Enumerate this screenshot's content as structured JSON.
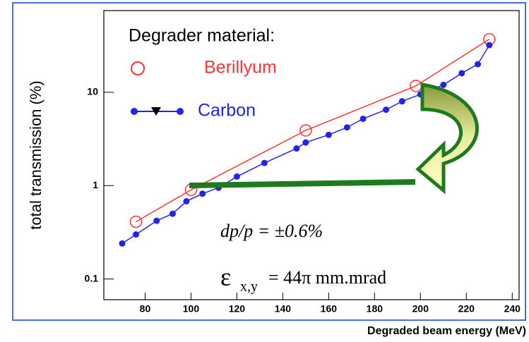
{
  "chart_data": {
    "type": "line",
    "y_label": "total transmission (%)",
    "x_label": "Degraded beam energy (MeV)",
    "legend_title": "Degrader material:",
    "log_y": true,
    "xlim": [
      62,
      243
    ],
    "xticks": [
      80,
      100,
      120,
      140,
      160,
      180,
      200,
      220,
      240
    ],
    "ylim": [
      0.06,
      75
    ],
    "yticks": [
      0.1,
      1,
      10
    ],
    "series": [
      {
        "name": "Berillyum",
        "color": "#ff3333",
        "marker": "circle",
        "x": [
          76,
          100,
          150,
          198,
          230
        ],
        "values": [
          0.41,
          0.9,
          3.9,
          11.7,
          37
        ]
      },
      {
        "name": "Carbon",
        "color": "#2222ee",
        "marker": "dot",
        "x": [
          70,
          76,
          85,
          92,
          98,
          105,
          112,
          120,
          132,
          146,
          150,
          160,
          168,
          175,
          185,
          192,
          200,
          210,
          218,
          225,
          230
        ],
        "values": [
          0.24,
          0.3,
          0.42,
          0.5,
          0.68,
          0.82,
          0.95,
          1.25,
          1.75,
          2.5,
          2.9,
          3.5,
          4.2,
          5.2,
          6.5,
          8,
          9.5,
          12,
          16,
          20,
          32
        ]
      }
    ],
    "annotations": [
      "dp/p = ±0.6%",
      "ε",
      "x,y",
      "= 44π mm.mrad"
    ]
  }
}
